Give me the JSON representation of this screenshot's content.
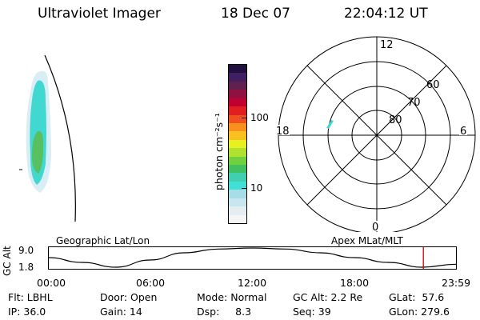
{
  "header": {
    "instrument": "Ultraviolet Imager",
    "date": "18 Dec 07",
    "time": "22:04:12 UT"
  },
  "colorbar": {
    "label": "photon cm⁻²s⁻¹",
    "ticks": [
      "100",
      "10"
    ],
    "colors": [
      "#f5f5f5",
      "#e4eef2",
      "#c8e6ee",
      "#a8dce8",
      "#40e0d8",
      "#40d0b0",
      "#40c060",
      "#70d040",
      "#b0e030",
      "#e8f020",
      "#f8c020",
      "#f89020",
      "#f05020",
      "#e02020",
      "#c00030",
      "#901040",
      "#602050",
      "#402060",
      "#201040"
    ]
  },
  "polar_plot": {
    "labels": {
      "mlt_top": "12",
      "mlt_left": "18",
      "mlt_right": "6",
      "mlt_bottom": "0",
      "lat_60": "60",
      "lat_70": "70",
      "lat_80": "80"
    },
    "spot_color": "#40d8d0"
  },
  "timeline": {
    "ylabel": "GC Alt",
    "ytick_top": "9.0",
    "ytick_bottom": "1.8",
    "left_title": "Geographic Lat/Lon",
    "right_title": "Apex  MLat/MLT",
    "xticks": [
      "00:00",
      "06:00",
      "12:00",
      "18:00",
      "23:59"
    ],
    "marker_color": "#d00000"
  },
  "chart_data": {
    "type": "line",
    "title": "",
    "xlabel": "",
    "ylabel": "GC Alt",
    "x": [
      "00:00",
      "02:00",
      "04:00",
      "06:00",
      "08:00",
      "10:00",
      "12:00",
      "14:00",
      "16:00",
      "18:00",
      "20:00",
      "22:00",
      "23:59"
    ],
    "ylim": [
      1.8,
      9.0
    ],
    "series": [
      {
        "values": [
          5.4,
          3.6,
          1.8,
          4.5,
          7.2,
          8.6,
          9.0,
          8.6,
          7.2,
          5.4,
          3.6,
          1.8,
          2.9
        ]
      }
    ],
    "marker_time": "22:04"
  },
  "info": {
    "flt": "Flt: LBHL",
    "ip": "IP: 36.0",
    "door": "Door: Open",
    "gain": "Gain: 14",
    "mode": "Mode: Normal",
    "dsp": "Dsp:     8.3",
    "gcalt": "GC Alt: 2.2 Re",
    "seq": "Seq: 39",
    "glat": "GLat:  57.6",
    "glon": "GLon: 279.6"
  }
}
